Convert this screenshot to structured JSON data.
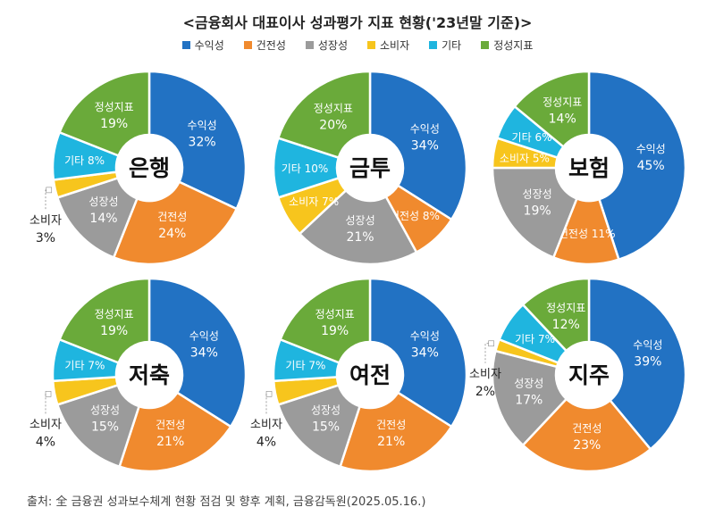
{
  "title": "<금융회사 대표이사 성과평가 지표 현황('23년말 기준)>",
  "source": "출처: 全 금융권 성과보수체계 현황 점검 및 향후 계획, 금융감독원(2025.05.16.)",
  "colors": {
    "수익성": "#2272c3",
    "건전성": "#f08a2e",
    "성장성": "#9b9b9b",
    "소비자": "#f7c51d",
    "기타": "#1fb5df",
    "정성지표": "#6aaa3a"
  },
  "legend": [
    "수익성",
    "건전성",
    "성장성",
    "소비자",
    "기타",
    "정성지표"
  ],
  "chart_data": [
    {
      "type": "pie",
      "title": "은행",
      "categories": [
        "수익성",
        "건전성",
        "성장성",
        "소비자",
        "기타",
        "정성지표"
      ],
      "values": [
        32,
        24,
        14,
        3,
        8,
        19
      ]
    },
    {
      "type": "pie",
      "title": "금투",
      "categories": [
        "수익성",
        "건전성",
        "성장성",
        "소비자",
        "기타",
        "정성지표"
      ],
      "values": [
        34,
        8,
        21,
        7,
        10,
        20
      ]
    },
    {
      "type": "pie",
      "title": "보험",
      "categories": [
        "수익성",
        "건전성",
        "성장성",
        "소비자",
        "기타",
        "정성지표"
      ],
      "values": [
        45,
        11,
        19,
        5,
        6,
        14
      ]
    },
    {
      "type": "pie",
      "title": "저축",
      "categories": [
        "수익성",
        "건전성",
        "성장성",
        "소비자",
        "기타",
        "정성지표"
      ],
      "values": [
        34,
        21,
        15,
        4,
        7,
        19
      ]
    },
    {
      "type": "pie",
      "title": "여전",
      "categories": [
        "수익성",
        "건전성",
        "성장성",
        "소비자",
        "기타",
        "정성지표"
      ],
      "values": [
        34,
        21,
        15,
        4,
        7,
        19
      ]
    },
    {
      "type": "pie",
      "title": "지주",
      "categories": [
        "수익성",
        "건전성",
        "성장성",
        "소비자",
        "기타",
        "정성지표"
      ],
      "values": [
        39,
        23,
        17,
        2,
        7,
        12
      ]
    }
  ]
}
